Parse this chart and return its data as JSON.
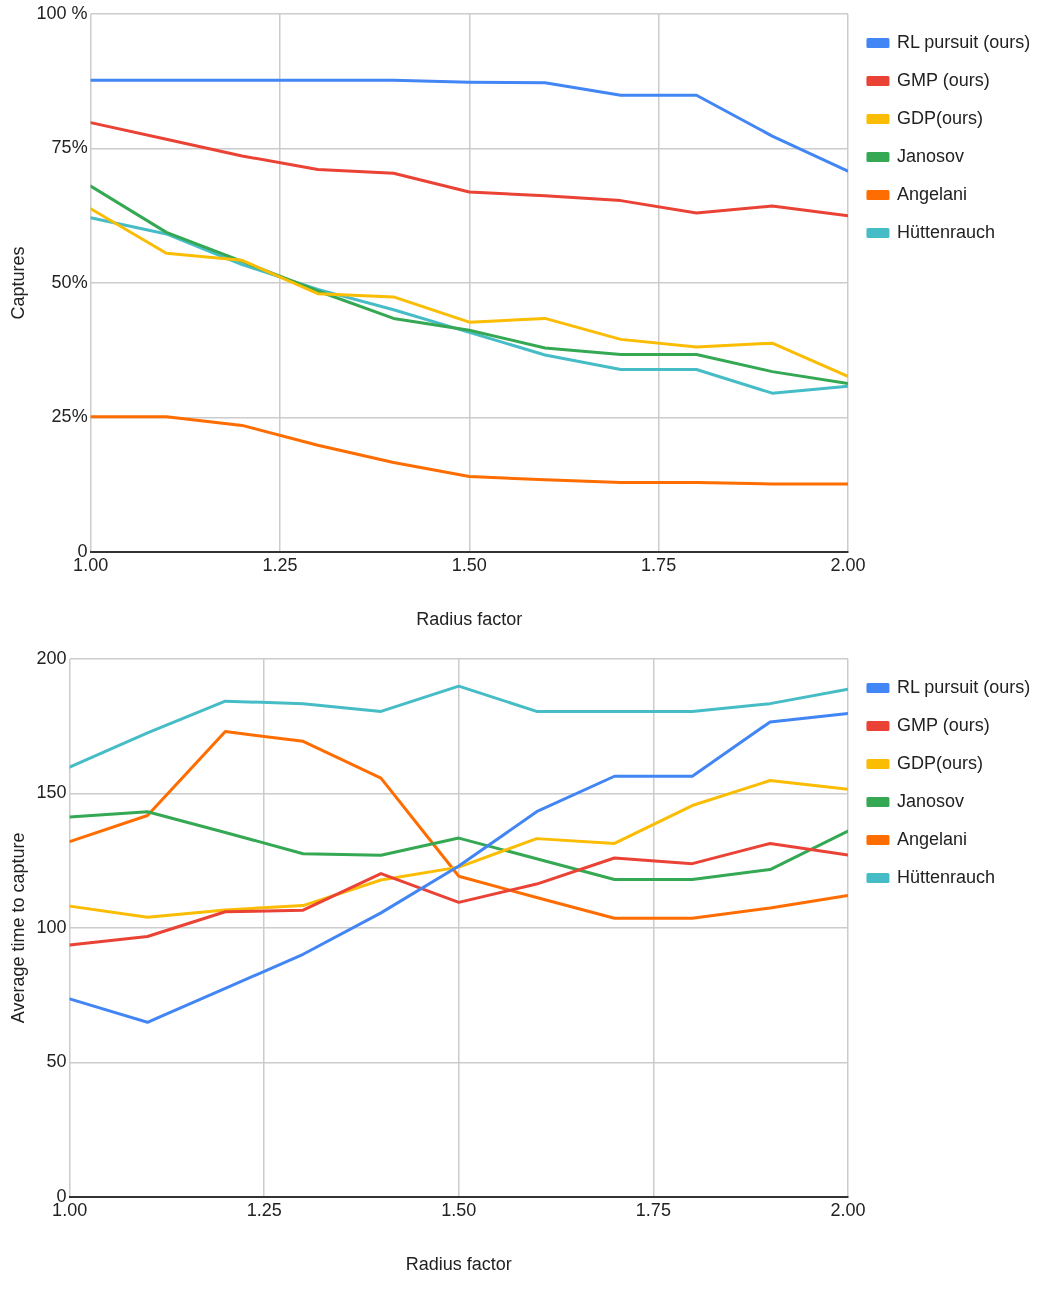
{
  "chart_data": [
    {
      "type": "line",
      "xlabel": "Radius factor",
      "ylabel": "Captures",
      "x": [
        1.0,
        1.1,
        1.2,
        1.3,
        1.4,
        1.5,
        1.6,
        1.7,
        1.8,
        1.9,
        2.0
      ],
      "xlim": [
        1.0,
        2.0
      ],
      "xticks": [
        {
          "value": 1.0,
          "label": "1.00"
        },
        {
          "value": 1.25,
          "label": "1.25"
        },
        {
          "value": 1.5,
          "label": "1.50"
        },
        {
          "value": 1.75,
          "label": "1.75"
        },
        {
          "value": 2.0,
          "label": "2.00"
        }
      ],
      "ylim": [
        0,
        100
      ],
      "yticks": [
        0,
        {
          "value": 25,
          "label": "25%"
        },
        {
          "value": 50,
          "label": "50%"
        },
        {
          "value": 75,
          "label": "75%"
        },
        {
          "value": 100,
          "label": "100 %"
        }
      ],
      "grid": true,
      "legend": "right",
      "marker": "none",
      "line_style": "solid",
      "series": [
        {
          "name": "RL pursuit (ours)",
          "color": "#4285f4",
          "values": [
            87.7,
            87.7,
            87.7,
            87.7,
            87.7,
            87.3,
            87.2,
            84.9,
            84.9,
            77.3,
            70.8
          ]
        },
        {
          "name": "GMP (ours)",
          "color": "#ea4335",
          "values": [
            79.8,
            76.7,
            73.6,
            71.1,
            70.4,
            66.9,
            66.2,
            65.3,
            63.0,
            64.3,
            62.5
          ]
        },
        {
          "name": "GDP(ours)",
          "color": "#fbbc04",
          "values": [
            63.8,
            55.5,
            54.2,
            48.0,
            47.4,
            42.7,
            43.4,
            39.5,
            38.1,
            38.8,
            32.6
          ]
        },
        {
          "name": "Janosov",
          "color": "#34a853",
          "values": [
            68.0,
            59.4,
            54.0,
            48.5,
            43.4,
            41.2,
            37.9,
            36.7,
            36.7,
            33.5,
            31.3
          ]
        },
        {
          "name": "Angelani",
          "color": "#ff6d01",
          "values": [
            25.1,
            25.1,
            23.5,
            19.8,
            16.6,
            14.0,
            13.4,
            12.9,
            12.9,
            12.6,
            12.6
          ]
        },
        {
          "name": "Hüttenrauch",
          "color": "#46bdc6",
          "values": [
            62.1,
            59.1,
            53.4,
            48.8,
            45.0,
            40.8,
            36.6,
            33.9,
            33.9,
            29.5,
            30.8
          ]
        }
      ]
    },
    {
      "type": "line",
      "xlabel": "Radius factor",
      "ylabel": "Average time to capture",
      "x": [
        1.0,
        1.1,
        1.2,
        1.3,
        1.4,
        1.5,
        1.6,
        1.7,
        1.8,
        1.9,
        2.0
      ],
      "xlim": [
        1.0,
        2.0
      ],
      "xticks": [
        {
          "value": 1.0,
          "label": "1.00"
        },
        {
          "value": 1.25,
          "label": "1.25"
        },
        {
          "value": 1.5,
          "label": "1.50"
        },
        {
          "value": 1.75,
          "label": "1.75"
        },
        {
          "value": 2.0,
          "label": "2.00"
        }
      ],
      "ylim": [
        0,
        200
      ],
      "yticks": [
        0,
        50,
        100,
        150,
        200
      ],
      "grid": true,
      "legend": "right",
      "marker": "none",
      "line_style": "solid",
      "series": [
        {
          "name": "RL pursuit (ours)",
          "color": "#4285f4",
          "values": [
            73.6,
            64.9,
            77.5,
            90.2,
            105.6,
            123.0,
            143.2,
            156.4,
            156.4,
            176.6,
            179.7
          ]
        },
        {
          "name": "GMP (ours)",
          "color": "#ea4335",
          "values": [
            93.6,
            96.8,
            106.0,
            106.6,
            120.2,
            109.5,
            116.3,
            126.0,
            123.9,
            131.4,
            127.1
          ]
        },
        {
          "name": "GDP(ours)",
          "color": "#fbbc04",
          "values": [
            108.1,
            104.0,
            106.7,
            108.3,
            117.8,
            122.6,
            133.2,
            131.4,
            145.5,
            154.8,
            151.6
          ]
        },
        {
          "name": "Janosov",
          "color": "#34a853",
          "values": [
            141.2,
            143.2,
            135.5,
            127.6,
            127.0,
            133.4,
            125.7,
            118.0,
            118.0,
            121.7,
            136.0
          ]
        },
        {
          "name": "Angelani",
          "color": "#ff6d01",
          "values": [
            132.1,
            141.8,
            173.0,
            169.4,
            155.7,
            119.2,
            111.3,
            103.6,
            103.6,
            107.4,
            112.1
          ]
        },
        {
          "name": "Hüttenrauch",
          "color": "#46bdc6",
          "values": [
            159.8,
            172.5,
            184.3,
            183.4,
            180.5,
            189.9,
            180.5,
            180.5,
            180.5,
            183.4,
            188.8
          ]
        }
      ]
    }
  ]
}
